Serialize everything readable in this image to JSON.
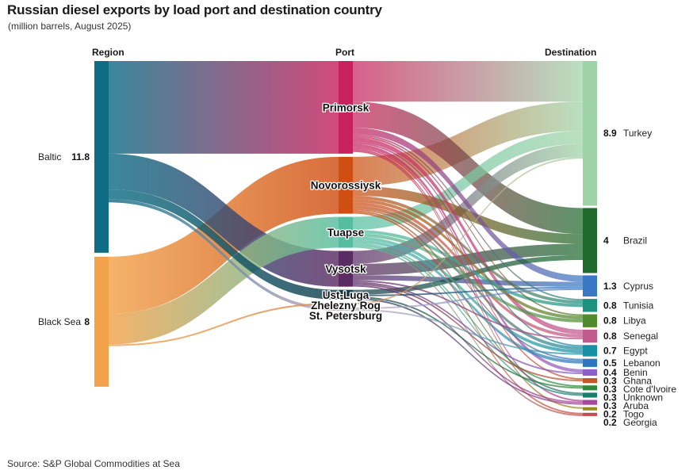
{
  "header": {
    "title": "Russian diesel exports by load port and destination country",
    "subtitle": "(million barrels, August 2025)"
  },
  "columns": {
    "region": "Region",
    "port": "Port",
    "destination": "Destination"
  },
  "source": "Source: S&P Global Commodities at Sea",
  "colors": {
    "baltic": "#0e6d85",
    "black_sea": "#f2a24a",
    "ports": {
      "Primorsk": "#c8225d",
      "Novorossiysk": "#cf4e12",
      "Tuapse": "#55bea0",
      "Vysotsk": "#5b2b63",
      "Ust-Luga": "#123f4c",
      "Zhelezny Rog": "#d98c57",
      "St. Petersburg": "#c9a8c4"
    },
    "destinations": {
      "Turkey": "#9fd3a7",
      "Brazil": "#1f6a2d",
      "Cyprus": "#3878c6",
      "Tunisia": "#1d9080",
      "Libya": "#4f8a2e",
      "Senegal": "#c05a8e",
      "Egypt": "#1590a6",
      "Lebanon": "#2a77c2",
      "Benin": "#8f5fc8",
      "Ghana": "#c65428",
      "Cote d'Ivoire": "#2f8a39",
      "Unknown": "#1a7e6f",
      "Aruba": "#a9469a",
      "Togo": "#9a8a1f",
      "Georgia": "#c44d4d"
    }
  },
  "chart_data": {
    "type": "sankey",
    "title": "Russian diesel exports by load port and destination country",
    "subtitle": "(million barrels, August 2025)",
    "units": "million barrels",
    "regions": [
      {
        "name": "Baltic",
        "value": 11.8,
        "value_label": "11.8"
      },
      {
        "name": "Black Sea",
        "value": 8,
        "value_label": "8"
      }
    ],
    "ports": [
      "Primorsk",
      "Novorossiysk",
      "Tuapse",
      "Vysotsk",
      "Ust-Luga",
      "Zhelezny Rog",
      "St. Petersburg"
    ],
    "destinations": [
      {
        "name": "Turkey",
        "value": 8.9,
        "value_label": "8.9"
      },
      {
        "name": "Brazil",
        "value": 4,
        "value_label": "4"
      },
      {
        "name": "Cyprus",
        "value": 1.3,
        "value_label": "1.3"
      },
      {
        "name": "Tunisia",
        "value": 0.8,
        "value_label": "0.8"
      },
      {
        "name": "Libya",
        "value": 0.8,
        "value_label": "0.8"
      },
      {
        "name": "Senegal",
        "value": 0.8,
        "value_label": "0.8"
      },
      {
        "name": "Egypt",
        "value": 0.7,
        "value_label": "0.7"
      },
      {
        "name": "Lebanon",
        "value": 0.5,
        "value_label": "0.5"
      },
      {
        "name": "Benin",
        "value": 0.4,
        "value_label": "0.4"
      },
      {
        "name": "Ghana",
        "value": 0.3,
        "value_label": "0.3"
      },
      {
        "name": "Cote d'Ivoire",
        "value": 0.3,
        "value_label": "0.3"
      },
      {
        "name": "Unknown",
        "value": 0.3,
        "value_label": "0.3"
      },
      {
        "name": "Aruba",
        "value": 0.3,
        "value_label": "0.3"
      },
      {
        "name": "Togo",
        "value": 0.2,
        "value_label": "0.2"
      },
      {
        "name": "Georgia",
        "value": 0.2,
        "value_label": "0.2"
      }
    ],
    "region_to_port": [
      {
        "source": "Baltic",
        "target": "Primorsk",
        "value": 5.7
      },
      {
        "source": "Baltic",
        "target": "Vysotsk",
        "value": 2.2
      },
      {
        "source": "Baltic",
        "target": "Ust-Luga",
        "value": 0.6
      },
      {
        "source": "Baltic",
        "target": "St. Petersburg",
        "value": 0.2
      },
      {
        "source": "Black Sea",
        "target": "Novorossiysk",
        "value": 3.5
      },
      {
        "source": "Black Sea",
        "target": "Tuapse",
        "value": 1.9
      },
      {
        "source": "Black Sea",
        "target": "Zhelezny Rog",
        "value": 0.1
      }
    ],
    "port_to_destination": [
      {
        "source": "Primorsk",
        "target": "Turkey",
        "value": 2.5
      },
      {
        "source": "Primorsk",
        "target": "Brazil",
        "value": 1.6
      },
      {
        "source": "Primorsk",
        "target": "Cyprus",
        "value": 0.4
      },
      {
        "source": "Primorsk",
        "target": "Senegal",
        "value": 0.3
      },
      {
        "source": "Primorsk",
        "target": "Benin",
        "value": 0.2
      },
      {
        "source": "Primorsk",
        "target": "Ghana",
        "value": 0.1
      },
      {
        "source": "Primorsk",
        "target": "Togo",
        "value": 0.1
      },
      {
        "source": "Primorsk",
        "target": "Aruba",
        "value": 0.1
      },
      {
        "source": "Primorsk",
        "target": "Libya",
        "value": 0.1
      },
      {
        "source": "Primorsk",
        "target": "Tunisia",
        "value": 0.1
      },
      {
        "source": "Primorsk",
        "target": "Egypt",
        "value": 0.1
      },
      {
        "source": "Novorossiysk",
        "target": "Turkey",
        "value": 1.8
      },
      {
        "source": "Novorossiysk",
        "target": "Brazil",
        "value": 0.6
      },
      {
        "source": "Novorossiysk",
        "target": "Libya",
        "value": 0.2
      },
      {
        "source": "Novorossiysk",
        "target": "Egypt",
        "value": 0.2
      },
      {
        "source": "Novorossiysk",
        "target": "Tunisia",
        "value": 0.2
      },
      {
        "source": "Novorossiysk",
        "target": "Senegal",
        "value": 0.2
      },
      {
        "source": "Novorossiysk",
        "target": "Lebanon",
        "value": 0.1
      },
      {
        "source": "Novorossiysk",
        "target": "Georgia",
        "value": 0.1
      },
      {
        "source": "Novorossiysk",
        "target": "Unknown",
        "value": 0.1
      },
      {
        "source": "Tuapse",
        "target": "Turkey",
        "value": 0.8
      },
      {
        "source": "Tuapse",
        "target": "Libya",
        "value": 0.2
      },
      {
        "source": "Tuapse",
        "target": "Tunisia",
        "value": 0.2
      },
      {
        "source": "Tuapse",
        "target": "Egypt",
        "value": 0.2
      },
      {
        "source": "Tuapse",
        "target": "Lebanon",
        "value": 0.2
      },
      {
        "source": "Tuapse",
        "target": "Cote d'Ivoire",
        "value": 0.1
      },
      {
        "source": "Tuapse",
        "target": "Unknown",
        "value": 0.1
      },
      {
        "source": "Tuapse",
        "target": "Georgia",
        "value": 0.1
      },
      {
        "source": "Vysotsk",
        "target": "Turkey",
        "value": 0.8
      },
      {
        "source": "Vysotsk",
        "target": "Brazil",
        "value": 0.7
      },
      {
        "source": "Vysotsk",
        "target": "Cyprus",
        "value": 0.3
      },
      {
        "source": "Vysotsk",
        "target": "Senegal",
        "value": 0.1
      },
      {
        "source": "Vysotsk",
        "target": "Ghana",
        "value": 0.1
      },
      {
        "source": "Vysotsk",
        "target": "Aruba",
        "value": 0.1
      },
      {
        "source": "Vysotsk",
        "target": "Benin",
        "value": 0.1
      },
      {
        "source": "Ust-Luga",
        "target": "Brazil",
        "value": 0.3
      },
      {
        "source": "Ust-Luga",
        "target": "Cyprus",
        "value": 0.1
      },
      {
        "source": "Ust-Luga",
        "target": "Cote d'Ivoire",
        "value": 0.1
      },
      {
        "source": "Ust-Luga",
        "target": "Aruba",
        "value": 0.1
      },
      {
        "source": "Zhelezny Rog",
        "target": "Turkey",
        "value": 0.1
      },
      {
        "source": "St. Petersburg",
        "target": "Cyprus",
        "value": 0.1
      },
      {
        "source": "St. Petersburg",
        "target": "Egypt",
        "value": 0.1
      }
    ]
  }
}
